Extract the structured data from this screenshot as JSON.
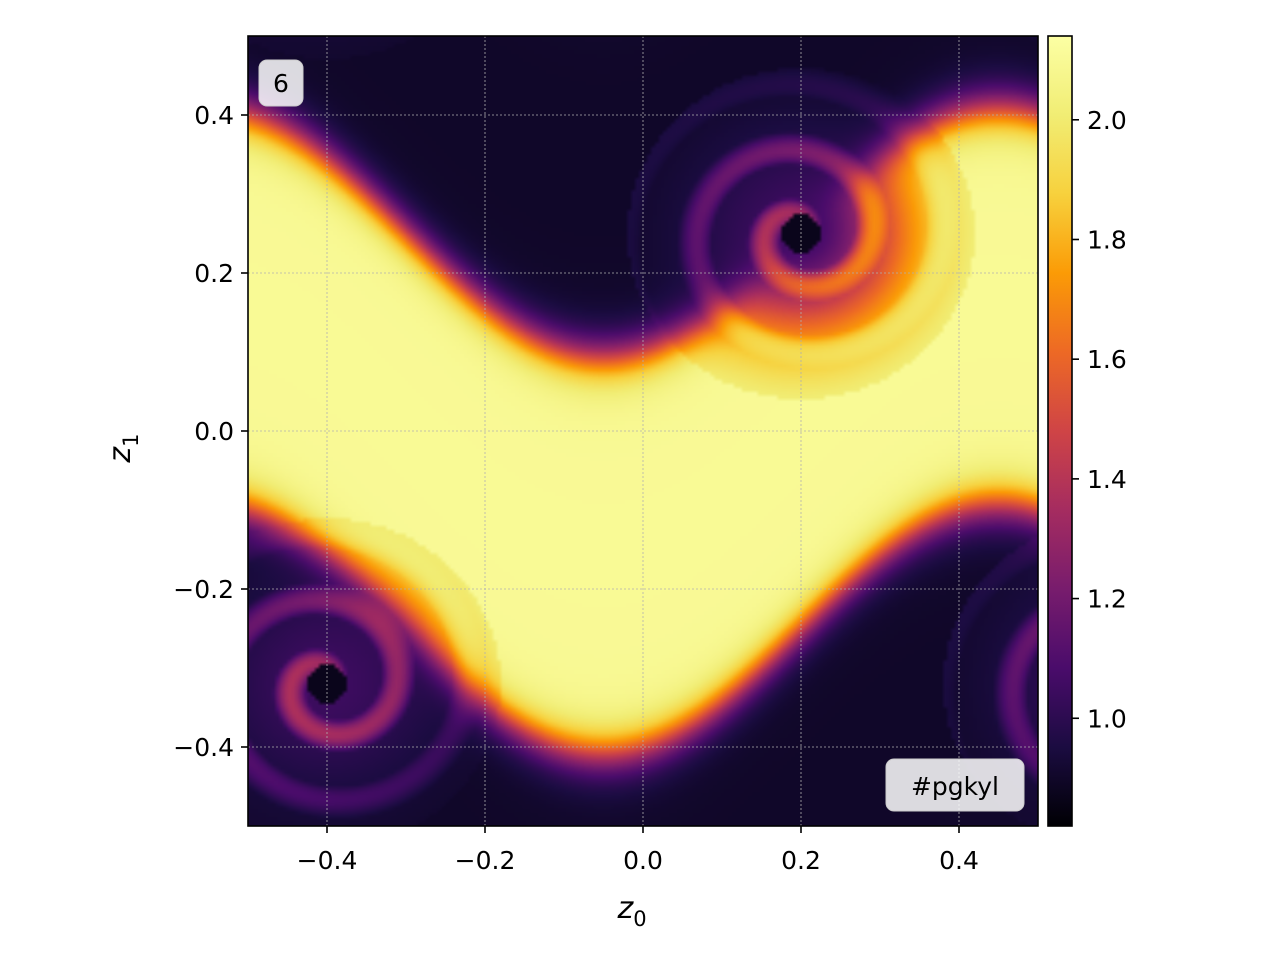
{
  "chart_data": {
    "type": "heatmap",
    "title": "",
    "xlabel": "z",
    "xlabel_sub": "0",
    "ylabel": "z",
    "ylabel_sub": "1",
    "xlim": [
      -0.5,
      0.5
    ],
    "ylim": [
      -0.5,
      0.5
    ],
    "grid": true,
    "colormap": "inferno",
    "clim": [
      0.82,
      2.14
    ],
    "x_ticks": [
      -0.4,
      -0.2,
      0.0,
      0.2,
      0.4
    ],
    "x_tick_labels": [
      "−0.4",
      "−0.2",
      "0.0",
      "0.2",
      "0.4"
    ],
    "y_ticks": [
      -0.4,
      -0.2,
      0.0,
      0.2,
      0.4
    ],
    "y_tick_labels": [
      "−0.4",
      "−0.2",
      "0.0",
      "0.2",
      "0.4"
    ],
    "colorbar_ticks": [
      1.0,
      1.2,
      1.4,
      1.6,
      1.8,
      2.0
    ],
    "colorbar_tick_labels": [
      "1.0",
      "1.2",
      "1.4",
      "1.6",
      "1.8",
      "2.0"
    ],
    "frame_label": "6",
    "watermark": "#pgkyl",
    "features": {
      "high_band_center_z1": 0.0,
      "low_band_center_z1": -0.5,
      "shear_slope": -1.15,
      "vortices": [
        {
          "z0": 0.2,
          "z1": 0.25,
          "value": 0.87
        },
        {
          "z0": -0.4,
          "z1": -0.32,
          "value": 0.87
        }
      ]
    }
  }
}
